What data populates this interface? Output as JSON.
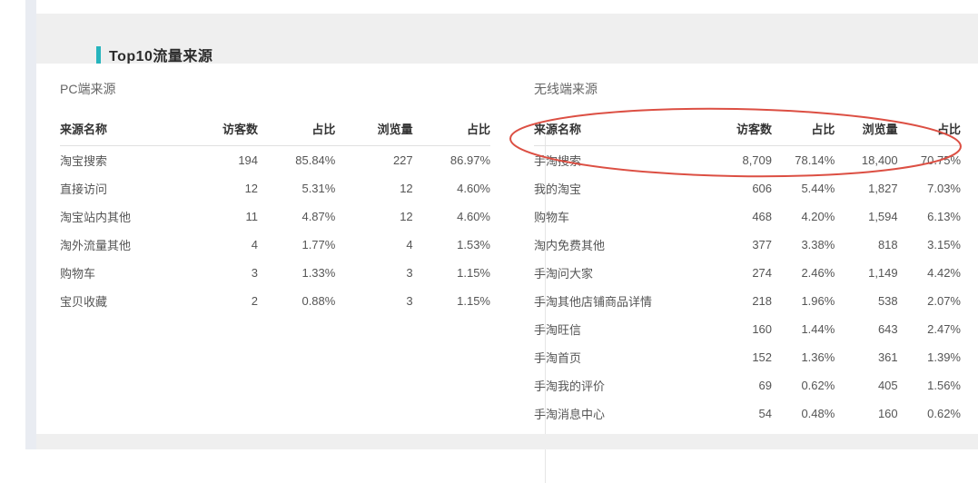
{
  "page": {
    "section_title": "Top10流量来源"
  },
  "colors": {
    "accent_teal": "#26b4bd",
    "annotation_red": "#dc4f43",
    "band_gray": "#efefef"
  },
  "pc_table": {
    "title": "PC端来源",
    "headers": [
      "来源名称",
      "访客数",
      "占比",
      "浏览量",
      "占比"
    ],
    "rows": [
      [
        "淘宝搜索",
        "194",
        "85.84%",
        "227",
        "86.97%"
      ],
      [
        "直接访问",
        "12",
        "5.31%",
        "12",
        "4.60%"
      ],
      [
        "淘宝站内其他",
        "11",
        "4.87%",
        "12",
        "4.60%"
      ],
      [
        "淘外流量其他",
        "4",
        "1.77%",
        "4",
        "1.53%"
      ],
      [
        "购物车",
        "3",
        "1.33%",
        "3",
        "1.15%"
      ],
      [
        "宝贝收藏",
        "2",
        "0.88%",
        "3",
        "1.15%"
      ]
    ]
  },
  "wireless_table": {
    "title": "无线端来源",
    "headers": [
      "来源名称",
      "访客数",
      "占比",
      "浏览量",
      "占比"
    ],
    "rows": [
      [
        "手淘搜索",
        "8,709",
        "78.14%",
        "18,400",
        "70.75%"
      ],
      [
        "我的淘宝",
        "606",
        "5.44%",
        "1,827",
        "7.03%"
      ],
      [
        "购物车",
        "468",
        "4.20%",
        "1,594",
        "6.13%"
      ],
      [
        "淘内免费其他",
        "377",
        "3.38%",
        "818",
        "3.15%"
      ],
      [
        "手淘问大家",
        "274",
        "2.46%",
        "1,149",
        "4.42%"
      ],
      [
        "手淘其他店铺商品详情",
        "218",
        "1.96%",
        "538",
        "2.07%"
      ],
      [
        "手淘旺信",
        "160",
        "1.44%",
        "643",
        "2.47%"
      ],
      [
        "手淘首页",
        "152",
        "1.36%",
        "361",
        "1.39%"
      ],
      [
        "手淘我的评价",
        "69",
        "0.62%",
        "405",
        "1.56%"
      ],
      [
        "手淘消息中心",
        "54",
        "0.48%",
        "160",
        "0.62%"
      ]
    ]
  },
  "annotation": {
    "shape": "hand-drawn ellipse",
    "color": "#dc4f43",
    "highlights_row": "手淘搜索"
  }
}
